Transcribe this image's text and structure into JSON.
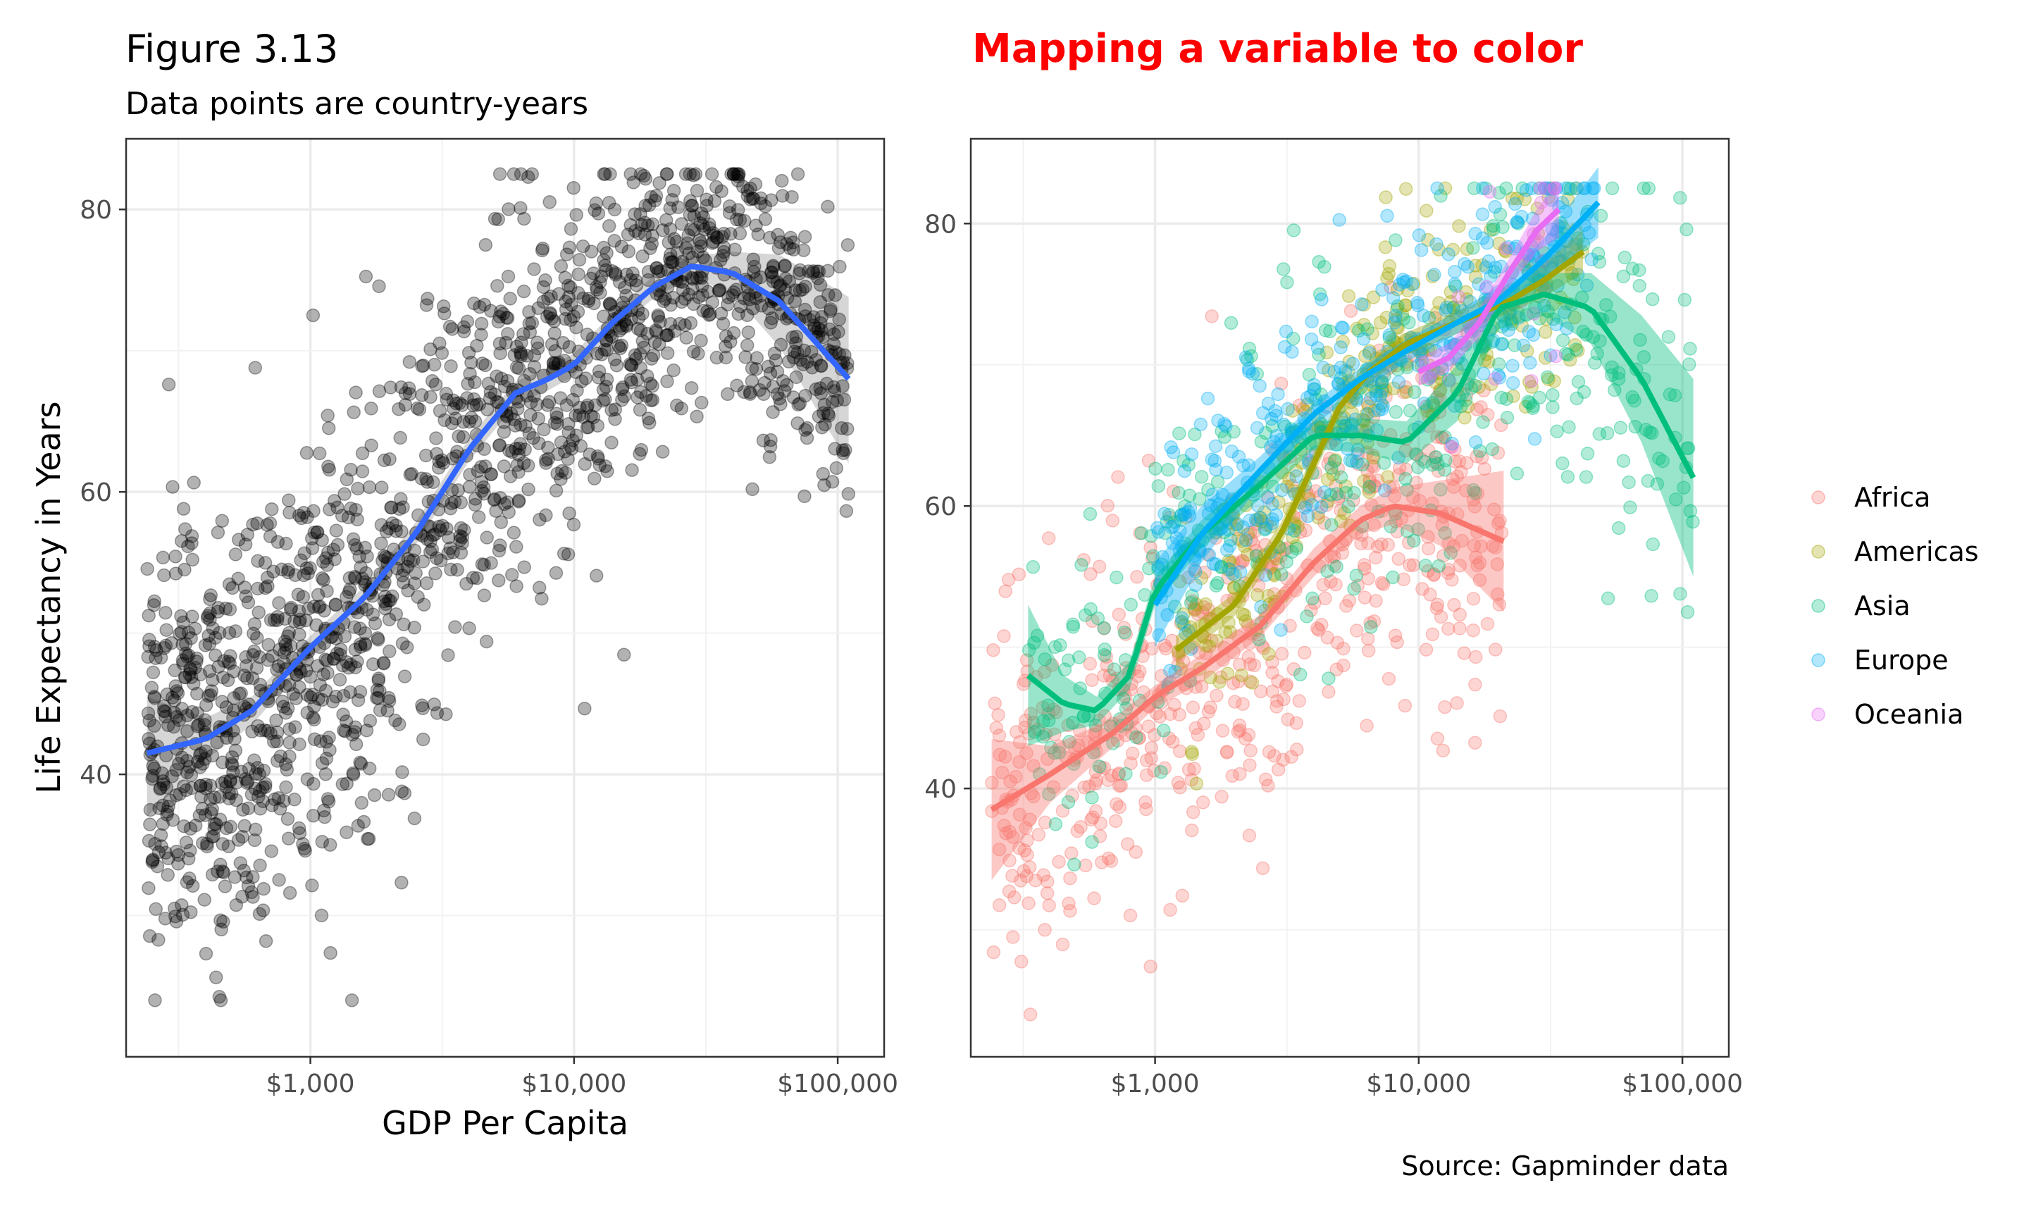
{
  "figure": {
    "title": "Figure 3.13",
    "subtitle": "Data points are country-years",
    "caption": "Source: Gapminder data"
  },
  "chart_data": [
    {
      "type": "scatter",
      "title": "",
      "xlabel": "GDP Per Capita",
      "ylabel": "Life Expectancy in Years",
      "xscale": "log10",
      "xlim": [
        200,
        150000
      ],
      "ylim": [
        20,
        85
      ],
      "xticks": [
        1000,
        10000,
        100000
      ],
      "xtick_labels": [
        "$1,000",
        "$10,000",
        "$100,000"
      ],
      "yticks": [
        40,
        60,
        80
      ],
      "ytick_labels": [
        "40",
        "60",
        "80"
      ],
      "grid": true,
      "point_color": "#000000",
      "point_alpha": 0.3,
      "n_points": 1704,
      "smooth": {
        "method": "loess",
        "color": "#3366FF",
        "band_color": "#999999",
        "x": [
          240,
          400,
          600,
          1000,
          1600,
          2500,
          4000,
          6000,
          8000,
          10000,
          14000,
          20000,
          28000,
          40000,
          60000,
          110000
        ],
        "y": [
          41.5,
          42.5,
          44.5,
          49.0,
          52.5,
          57.0,
          63.0,
          67.0,
          68.0,
          69.0,
          72.0,
          74.5,
          76.0,
          75.5,
          73.5,
          68.0
        ],
        "upper": [
          45.5,
          44.0,
          45.5,
          49.8,
          53.3,
          57.8,
          63.8,
          67.8,
          68.8,
          69.8,
          72.7,
          75.3,
          76.7,
          77.0,
          76.8,
          73.8
        ],
        "lower": [
          37.0,
          41.0,
          43.5,
          48.2,
          51.7,
          56.2,
          62.2,
          66.2,
          67.2,
          68.2,
          71.3,
          73.7,
          75.2,
          74.0,
          70.3,
          62.0
        ]
      }
    },
    {
      "type": "scatter",
      "title": "Mapping a variable to color",
      "title_color": "#FF0000",
      "xlabel": "",
      "ylabel": "",
      "xscale": "log10",
      "xlim": [
        200,
        150000
      ],
      "ylim": [
        21,
        86
      ],
      "xticks": [
        1000,
        10000,
        100000
      ],
      "xtick_labels": [
        "$1,000",
        "$10,000",
        "$100,000"
      ],
      "yticks": [
        40,
        60,
        80
      ],
      "ytick_labels": [
        "40",
        "60",
        "80"
      ],
      "grid": true,
      "point_alpha": 0.3,
      "legend_position": "right",
      "series": [
        {
          "name": "Africa",
          "color": "#F8766D",
          "n_points": 624,
          "smooth_x": [
            240,
            400,
            700,
            1000,
            1500,
            2500,
            4000,
            6000,
            8000,
            12000,
            21000
          ],
          "smooth_y": [
            38.5,
            41.0,
            44.0,
            46.5,
            48.5,
            51.5,
            56.0,
            59.0,
            60.0,
            59.5,
            57.5
          ],
          "upper": [
            43.5,
            43.0,
            45.0,
            47.3,
            49.5,
            52.3,
            57.0,
            60.0,
            61.3,
            61.8,
            62.5
          ],
          "lower": [
            33.5,
            39.0,
            43.0,
            45.7,
            47.5,
            50.7,
            55.0,
            58.0,
            58.7,
            57.2,
            52.5
          ]
        },
        {
          "name": "Americas",
          "color": "#A3A500",
          "n_points": 300,
          "smooth_x": [
            1200,
            2000,
            3000,
            4000,
            5000,
            6500,
            9000,
            14000,
            22000,
            30000,
            42000
          ],
          "smooth_y": [
            49.8,
            53.0,
            58.0,
            63.0,
            67.0,
            69.5,
            71.5,
            73.0,
            74.5,
            76.0,
            78.0
          ],
          "upper": [
            50.8,
            53.8,
            58.8,
            63.8,
            67.8,
            70.3,
            72.3,
            73.8,
            75.3,
            77.2,
            79.5
          ],
          "lower": [
            48.8,
            52.2,
            57.2,
            62.2,
            66.2,
            68.7,
            70.7,
            72.2,
            73.7,
            74.8,
            76.5
          ]
        },
        {
          "name": "Asia",
          "color": "#00BF7D",
          "n_points": 396,
          "smooth_x": [
            330,
            450,
            600,
            800,
            1000,
            1500,
            2500,
            4000,
            6000,
            9000,
            14000,
            20000,
            30000,
            45000,
            70000,
            110000
          ],
          "smooth_y": [
            48.0,
            46.0,
            45.5,
            48.0,
            54.0,
            58.0,
            61.5,
            65.0,
            65.0,
            64.5,
            68.0,
            74.0,
            75.0,
            74.0,
            69.0,
            62.0
          ],
          "upper": [
            53.0,
            48.0,
            46.5,
            49.0,
            55.0,
            59.0,
            62.5,
            66.0,
            66.2,
            66.0,
            70.0,
            75.5,
            76.5,
            76.5,
            73.5,
            69.0
          ],
          "lower": [
            43.0,
            44.0,
            44.5,
            47.0,
            53.0,
            57.0,
            60.5,
            64.0,
            63.8,
            63.0,
            66.0,
            72.5,
            73.5,
            71.5,
            64.5,
            55.0
          ]
        },
        {
          "name": "Europe",
          "color": "#00B0F6",
          "n_points": 360,
          "smooth_x": [
            1000,
            1500,
            2500,
            4000,
            6000,
            9000,
            14000,
            20000,
            30000,
            48000
          ],
          "smooth_y": [
            53.0,
            58.0,
            62.5,
            66.5,
            69.0,
            71.0,
            73.0,
            74.5,
            77.5,
            81.5
          ],
          "upper": [
            56.0,
            60.0,
            63.5,
            67.3,
            69.8,
            71.8,
            73.8,
            75.5,
            79.0,
            84.0
          ],
          "lower": [
            50.0,
            56.0,
            61.5,
            65.7,
            68.2,
            70.2,
            72.2,
            73.5,
            76.0,
            79.0
          ]
        },
        {
          "name": "Oceania",
          "color": "#E76BF3",
          "n_points": 24,
          "smooth_x": [
            10000,
            13000,
            17000,
            22000,
            28000,
            34000
          ],
          "smooth_y": [
            69.5,
            70.5,
            73.0,
            76.5,
            79.5,
            81.0
          ],
          "upper": [
            70.5,
            71.5,
            74.0,
            77.5,
            81.0,
            83.0
          ],
          "lower": [
            68.5,
            69.5,
            72.0,
            75.5,
            78.0,
            79.0
          ]
        }
      ]
    }
  ]
}
